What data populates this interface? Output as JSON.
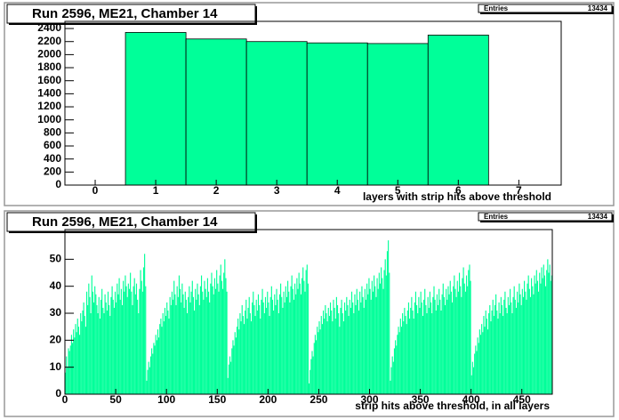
{
  "chart_data": [
    {
      "type": "histogram",
      "title": "Run 2596, ME21, Chamber 14",
      "stats_label": "Entries",
      "entries": 13434,
      "xlabel": "layers with strip hits above threshold",
      "bins": [
        0.5,
        1.5,
        2.5,
        3.5,
        4.5,
        5.5,
        6.5
      ],
      "values": [
        2340,
        2240,
        2200,
        2180,
        2170,
        2300
      ],
      "color": "#00ff99",
      "xlim": [
        -0.5,
        7.7
      ],
      "ylim": [
        0,
        2510
      ],
      "xticks": [
        0,
        1,
        2,
        3,
        4,
        5,
        6,
        7
      ],
      "yticks": [
        0,
        200,
        400,
        600,
        800,
        1000,
        1200,
        1400,
        1600,
        1800,
        2000,
        2200,
        2400
      ]
    },
    {
      "type": "histogram",
      "title": "Run 2596, ME21, Chamber 14",
      "stats_label": "Entries",
      "entries": 13434,
      "xlabel": "strip hits above threshold, in all layers",
      "bins": [
        0,
        1,
        2,
        3,
        4,
        5,
        6,
        7,
        8,
        9,
        10,
        11,
        12,
        13,
        14,
        15,
        16,
        17,
        18,
        19,
        20,
        21,
        22,
        23,
        24,
        25,
        26,
        27,
        28,
        29,
        30,
        31,
        32,
        33,
        34,
        35,
        36,
        37,
        38,
        39,
        40,
        41,
        42,
        43,
        44,
        45,
        46,
        47,
        48,
        49,
        50,
        51,
        52,
        53,
        54,
        55,
        56,
        57,
        58,
        59,
        60,
        61,
        62,
        63,
        64,
        65,
        66,
        67,
        68,
        69,
        70,
        71,
        72,
        73,
        74,
        75,
        76,
        77,
        78,
        79,
        80,
        81,
        82,
        83,
        84,
        85,
        86,
        87,
        88,
        89,
        90,
        91,
        92,
        93,
        94,
        95,
        96,
        97,
        98,
        99,
        100,
        101,
        102,
        103,
        104,
        105,
        106,
        107,
        108,
        109,
        110,
        111,
        112,
        113,
        114,
        115,
        116,
        117,
        118,
        119,
        120,
        121,
        122,
        123,
        124,
        125,
        126,
        127,
        128,
        129,
        130,
        131,
        132,
        133,
        134,
        135,
        136,
        137,
        138,
        139,
        140,
        141,
        142,
        143,
        144,
        145,
        146,
        147,
        148,
        149,
        150,
        151,
        152,
        153,
        154,
        155,
        156,
        157,
        158,
        159,
        160,
        161,
        162,
        163,
        164,
        165,
        166,
        167,
        168,
        169,
        170,
        171,
        172,
        173,
        174,
        175,
        176,
        177,
        178,
        179,
        180,
        181,
        182,
        183,
        184,
        185,
        186,
        187,
        188,
        189,
        190,
        191,
        192,
        193,
        194,
        195,
        196,
        197,
        198,
        199,
        200,
        201,
        202,
        203,
        204,
        205,
        206,
        207,
        208,
        209,
        210,
        211,
        212,
        213,
        214,
        215,
        216,
        217,
        218,
        219,
        220,
        221,
        222,
        223,
        224,
        225,
        226,
        227,
        228,
        229,
        230,
        231,
        232,
        233,
        234,
        235,
        236,
        237,
        238,
        239,
        240,
        241,
        242,
        243,
        244,
        245,
        246,
        247,
        248,
        249,
        250,
        251,
        252,
        253,
        254,
        255,
        256,
        257,
        258,
        259,
        260,
        261,
        262,
        263,
        264,
        265,
        266,
        267,
        268,
        269,
        270,
        271,
        272,
        273,
        274,
        275,
        276,
        277,
        278,
        279,
        280,
        281,
        282,
        283,
        284,
        285,
        286,
        287,
        288,
        289,
        290,
        291,
        292,
        293,
        294,
        295,
        296,
        297,
        298,
        299,
        300,
        301,
        302,
        303,
        304,
        305,
        306,
        307,
        308,
        309,
        310,
        311,
        312,
        313,
        314,
        315,
        316,
        317,
        318,
        319,
        320,
        321,
        322,
        323,
        324,
        325,
        326,
        327,
        328,
        329,
        330,
        331,
        332,
        333,
        334,
        335,
        336,
        337,
        338,
        339,
        340,
        341,
        342,
        343,
        344,
        345,
        346,
        347,
        348,
        349,
        350,
        351,
        352,
        353,
        354,
        355,
        356,
        357,
        358,
        359,
        360,
        361,
        362,
        363,
        364,
        365,
        366,
        367,
        368,
        369,
        370,
        371,
        372,
        373,
        374,
        375,
        376,
        377,
        378,
        379,
        380,
        381,
        382,
        383,
        384,
        385,
        386,
        387,
        388,
        389,
        390,
        391,
        392,
        393,
        394,
        395,
        396,
        397,
        398,
        399,
        400,
        401,
        402,
        403,
        404,
        405,
        406,
        407,
        408,
        409,
        410,
        411,
        412,
        413,
        414,
        415,
        416,
        417,
        418,
        419,
        420,
        421,
        422,
        423,
        424,
        425,
        426,
        427,
        428,
        429,
        430,
        431,
        432,
        433,
        434,
        435,
        436,
        437,
        438,
        439,
        440,
        441,
        442,
        443,
        444,
        445,
        446,
        447,
        448,
        449,
        450,
        451,
        452,
        453,
        454,
        455,
        456,
        457,
        458,
        459,
        460,
        461,
        462,
        463,
        464,
        465,
        466,
        467,
        468,
        469,
        470,
        471,
        472,
        473,
        474,
        475,
        476,
        477,
        478,
        479,
        480
      ],
      "values": [
        8,
        14,
        10,
        17,
        16,
        18,
        22,
        19,
        24,
        21,
        26,
        23,
        28,
        25,
        22,
        30,
        27,
        31,
        34,
        29,
        25,
        38,
        33,
        41,
        36,
        30,
        44,
        38,
        34,
        40,
        37,
        33,
        30,
        36,
        28,
        35,
        39,
        32,
        30,
        37,
        34,
        31,
        38,
        33,
        29,
        36,
        40,
        35,
        32,
        38,
        34,
        41,
        37,
        43,
        35,
        39,
        33,
        42,
        38,
        44,
        40,
        36,
        41,
        39,
        45,
        38,
        33,
        40,
        43,
        37,
        41,
        35,
        30,
        39,
        46,
        42,
        38,
        47,
        52,
        40,
        5,
        9,
        12,
        10,
        14,
        17,
        15,
        19,
        18,
        22,
        20,
        24,
        21,
        26,
        28,
        25,
        30,
        27,
        32,
        29,
        34,
        31,
        28,
        36,
        33,
        38,
        35,
        42,
        37,
        33,
        40,
        36,
        44,
        39,
        34,
        41,
        37,
        32,
        38,
        35,
        30,
        36,
        40,
        34,
        38,
        42,
        36,
        31,
        39,
        35,
        41,
        37,
        33,
        40,
        44,
        38,
        35,
        42,
        39,
        36,
        43,
        38,
        34,
        41,
        45,
        40,
        37,
        43,
        39,
        46,
        41,
        38,
        44,
        48,
        42,
        39,
        45,
        50,
        43,
        38,
        6,
        11,
        14,
        12,
        17,
        20,
        18,
        23,
        21,
        25,
        28,
        24,
        30,
        27,
        33,
        29,
        26,
        31,
        35,
        28,
        32,
        36,
        30,
        27,
        34,
        38,
        33,
        29,
        35,
        31,
        37,
        33,
        28,
        35,
        39,
        34,
        30,
        36,
        32,
        38,
        34,
        29,
        36,
        40,
        35,
        31,
        37,
        33,
        39,
        35,
        30,
        37,
        41,
        36,
        32,
        38,
        34,
        40,
        36,
        42,
        38,
        34,
        40,
        44,
        39,
        35,
        41,
        37,
        43,
        39,
        45,
        41,
        37,
        43,
        47,
        42,
        38,
        46,
        48,
        41,
        4,
        9,
        13,
        16,
        14,
        19,
        22,
        20,
        25,
        23,
        27,
        24,
        29,
        26,
        31,
        28,
        33,
        30,
        27,
        32,
        29,
        34,
        31,
        27,
        35,
        32,
        28,
        36,
        33,
        30,
        25,
        32,
        35,
        30,
        27,
        34,
        31,
        36,
        33,
        29,
        35,
        32,
        38,
        34,
        30,
        37,
        33,
        39,
        35,
        31,
        38,
        34,
        40,
        36,
        32,
        39,
        35,
        41,
        37,
        43,
        39,
        35,
        42,
        38,
        44,
        40,
        36,
        43,
        39,
        45,
        41,
        47,
        43,
        39,
        46,
        50,
        44,
        53,
        57,
        45,
        5,
        10,
        14,
        12,
        17,
        20,
        18,
        22,
        25,
        23,
        28,
        25,
        30,
        27,
        32,
        29,
        26,
        31,
        34,
        28,
        32,
        36,
        31,
        28,
        34,
        38,
        33,
        30,
        36,
        32,
        38,
        34,
        29,
        35,
        39,
        33,
        30,
        36,
        32,
        38,
        34,
        30,
        36,
        40,
        35,
        31,
        37,
        33,
        39,
        35,
        31,
        37,
        41,
        36,
        33,
        39,
        35,
        40,
        37,
        42,
        38,
        34,
        40,
        44,
        39,
        36,
        42,
        38,
        45,
        40,
        36,
        43,
        47,
        41,
        38,
        44,
        40,
        46,
        48,
        42,
        7,
        12,
        10,
        15,
        18,
        16,
        21,
        19,
        24,
        22,
        26,
        23,
        29,
        25,
        31,
        28,
        24,
        30,
        33,
        27,
        31,
        35,
        29,
        33,
        37,
        31,
        28,
        34,
        30,
        36,
        33,
        29,
        35,
        38,
        32,
        30,
        36,
        33,
        39,
        34,
        30,
        36,
        40,
        35,
        32,
        38,
        34,
        41,
        37,
        33,
        39,
        36,
        42,
        38,
        35,
        41,
        44,
        39,
        36,
        43,
        40,
        37,
        44,
        41,
        46,
        42,
        38,
        45,
        41,
        47,
        43,
        48,
        44,
        40,
        46,
        50,
        45,
        48,
        42,
        44
      ],
      "color": "#00ff99",
      "xlim": [
        0,
        480
      ],
      "ylim": [
        0,
        61
      ],
      "xticks": [
        0,
        50,
        100,
        150,
        200,
        250,
        300,
        350,
        400,
        450
      ],
      "yticks": [
        0,
        10,
        20,
        30,
        40,
        50
      ]
    }
  ]
}
